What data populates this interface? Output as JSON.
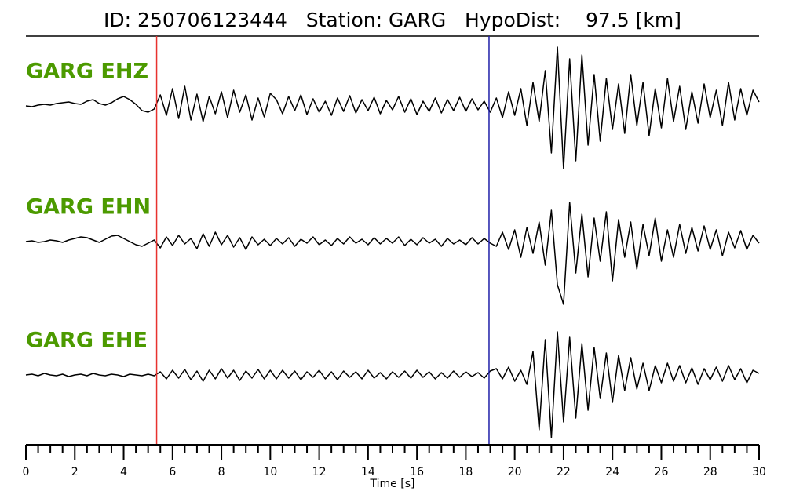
{
  "chart_data": {
    "type": "line",
    "title": "ID: 250706123444   Station: GARG   HypoDist:    97.5 [km]",
    "xlabel": "Time [s]",
    "xlim": [
      0,
      30
    ],
    "xticks": [
      0,
      2,
      4,
      6,
      8,
      10,
      12,
      14,
      16,
      18,
      20,
      22,
      24,
      26,
      28,
      30
    ],
    "xminorticks": [
      0.5,
      1,
      1.5,
      2.5,
      3,
      3.5,
      4.5,
      5,
      5.5,
      6.5,
      7,
      7.5,
      8.5,
      9,
      9.5,
      10.5,
      11,
      11.5,
      12.5,
      13,
      13.5,
      14.5,
      15,
      15.5,
      16.5,
      17,
      17.5,
      18.5,
      19,
      19.5,
      20.5,
      21,
      21.5,
      22.5,
      23,
      23.5,
      24.5,
      25,
      25.5,
      26.5,
      27,
      27.5,
      28.5,
      29,
      29.5
    ],
    "ylim": [
      -86,
      86
    ],
    "label_color": "#4c9a00",
    "picks": [
      {
        "value": 5.35,
        "color": "#e8322e"
      },
      {
        "value": 18.95,
        "color": "#1f1fa8"
      }
    ],
    "x": [
      0,
      0.25,
      0.5,
      0.75,
      1,
      1.25,
      1.5,
      1.75,
      2,
      2.25,
      2.5,
      2.75,
      3,
      3.25,
      3.5,
      3.75,
      4,
      4.25,
      4.5,
      4.75,
      5,
      5.25,
      5.5,
      5.75,
      6,
      6.25,
      6.5,
      6.75,
      7,
      7.25,
      7.5,
      7.75,
      8,
      8.25,
      8.5,
      8.75,
      9,
      9.25,
      9.5,
      9.75,
      10,
      10.25,
      10.5,
      10.75,
      11,
      11.25,
      11.5,
      11.75,
      12,
      12.25,
      12.5,
      12.75,
      13,
      13.25,
      13.5,
      13.75,
      14,
      14.25,
      14.5,
      14.75,
      15,
      15.25,
      15.5,
      15.75,
      16,
      16.25,
      16.5,
      16.75,
      17,
      17.25,
      17.5,
      17.75,
      18,
      18.25,
      18.5,
      18.75,
      19,
      19.25,
      19.5,
      19.75,
      20,
      20.25,
      20.5,
      20.75,
      21,
      21.25,
      21.5,
      21.75,
      22,
      22.25,
      22.5,
      22.75,
      23,
      23.25,
      23.5,
      23.75,
      24,
      24.25,
      24.5,
      24.75,
      25,
      25.25,
      25.5,
      25.75,
      26,
      26.25,
      26.5,
      26.75,
      27,
      27.25,
      27.5,
      27.75,
      28,
      28.25,
      28.5,
      28.75,
      29,
      29.25,
      29.5,
      29.75,
      30
    ],
    "series": [
      {
        "name": "GARG EHZ",
        "color": "#000000",
        "values": [
          0,
          -1,
          1,
          2,
          1,
          3,
          4,
          5,
          3,
          2,
          6,
          8,
          3,
          1,
          4,
          9,
          12,
          8,
          2,
          -6,
          -8,
          -4,
          14,
          -12,
          22,
          -16,
          25,
          -18,
          15,
          -20,
          12,
          -10,
          18,
          -15,
          20,
          -8,
          14,
          -18,
          10,
          -14,
          16,
          8,
          -10,
          12,
          -6,
          14,
          -11,
          9,
          -8,
          6,
          -12,
          10,
          -7,
          13,
          -9,
          8,
          -6,
          11,
          -10,
          7,
          -5,
          12,
          -8,
          9,
          -11,
          6,
          -7,
          10,
          -9,
          8,
          -6,
          11,
          -7,
          9,
          -5,
          6,
          -8,
          10,
          -15,
          18,
          -12,
          22,
          -25,
          30,
          -20,
          45,
          -60,
          75,
          -80,
          60,
          -70,
          65,
          -50,
          40,
          -45,
          35,
          -30,
          28,
          -35,
          40,
          -25,
          30,
          -38,
          22,
          -28,
          35,
          -20,
          25,
          -30,
          18,
          -22,
          28,
          -15,
          20,
          -25,
          30,
          -18,
          22,
          -12,
          20,
          5
        ]
      },
      {
        "name": "GARG EHN",
        "color": "#000000",
        "values": [
          0,
          1,
          -1,
          0,
          2,
          1,
          -1,
          2,
          4,
          6,
          5,
          2,
          -1,
          3,
          7,
          8,
          4,
          0,
          -4,
          -6,
          -2,
          2,
          -8,
          6,
          -5,
          8,
          -3,
          4,
          -9,
          10,
          -6,
          12,
          -4,
          8,
          -7,
          5,
          -10,
          6,
          -4,
          3,
          -5,
          4,
          -3,
          5,
          -6,
          3,
          -2,
          6,
          -4,
          2,
          -5,
          4,
          -3,
          6,
          -2,
          3,
          -4,
          5,
          -3,
          4,
          -2,
          6,
          -5,
          3,
          -4,
          5,
          -2,
          3,
          -6,
          4,
          -3,
          2,
          -4,
          5,
          -3,
          4,
          -2,
          -6,
          12,
          -10,
          15,
          -20,
          18,
          -15,
          25,
          -30,
          40,
          -55,
          -80,
          50,
          -40,
          35,
          -45,
          30,
          -25,
          38,
          -50,
          28,
          -20,
          25,
          -35,
          22,
          -18,
          30,
          -25,
          15,
          -20,
          22,
          -15,
          18,
          -12,
          20,
          -10,
          15,
          -18,
          12,
          -8,
          14,
          -10,
          8,
          -2
        ]
      },
      {
        "name": "GARG EHE",
        "color": "#000000",
        "values": [
          0,
          1,
          -1,
          2,
          0,
          -1,
          1,
          -2,
          0,
          1,
          -1,
          2,
          0,
          -1,
          1,
          0,
          -2,
          1,
          0,
          -1,
          1,
          -1,
          4,
          -5,
          6,
          -4,
          7,
          -6,
          5,
          -8,
          6,
          -5,
          8,
          -4,
          6,
          -7,
          5,
          -4,
          7,
          -5,
          6,
          -5,
          6,
          -4,
          5,
          -6,
          4,
          -3,
          6,
          -5,
          4,
          -6,
          5,
          -3,
          4,
          -5,
          6,
          -4,
          3,
          -5,
          4,
          -3,
          5,
          -4,
          6,
          -3,
          4,
          -5,
          3,
          -4,
          5,
          -3,
          4,
          -2,
          3,
          -4,
          5,
          8,
          -5,
          10,
          -8,
          6,
          -12,
          30,
          -70,
          45,
          -80,
          55,
          -60,
          48,
          -55,
          40,
          -45,
          35,
          -30,
          28,
          -35,
          25,
          -20,
          22,
          -18,
          15,
          -20,
          12,
          -10,
          15,
          -8,
          12,
          -10,
          9,
          -12,
          8,
          -6,
          10,
          -8,
          12,
          -6,
          8,
          -10,
          6,
          2
        ]
      }
    ]
  }
}
